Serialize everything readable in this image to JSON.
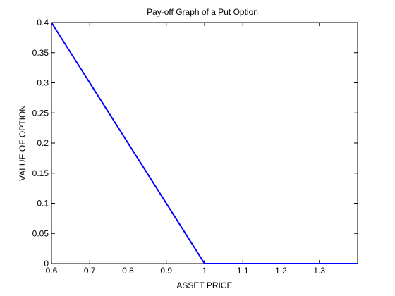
{
  "chart_data": {
    "type": "line",
    "title": "Pay-off Graph of a  Put Option",
    "xlabel": "ASSET PRICE",
    "ylabel": "VALUE OF OPTION",
    "xlim": [
      0.6,
      1.4
    ],
    "ylim": [
      0,
      0.4
    ],
    "xticks": [
      "0.6",
      "0.7",
      "0.8",
      "0.9",
      "1",
      "1.1",
      "1.2",
      "1.3"
    ],
    "yticks": [
      "0",
      "0.05",
      "0.1",
      "0.15",
      "0.2",
      "0.25",
      "0.3",
      "0.35",
      "0.4"
    ],
    "grid": false,
    "series": [
      {
        "color": "#0000ff",
        "x": [
          0.6,
          1.0,
          1.4
        ],
        "y": [
          0.4,
          0.0,
          0.0
        ]
      }
    ]
  }
}
